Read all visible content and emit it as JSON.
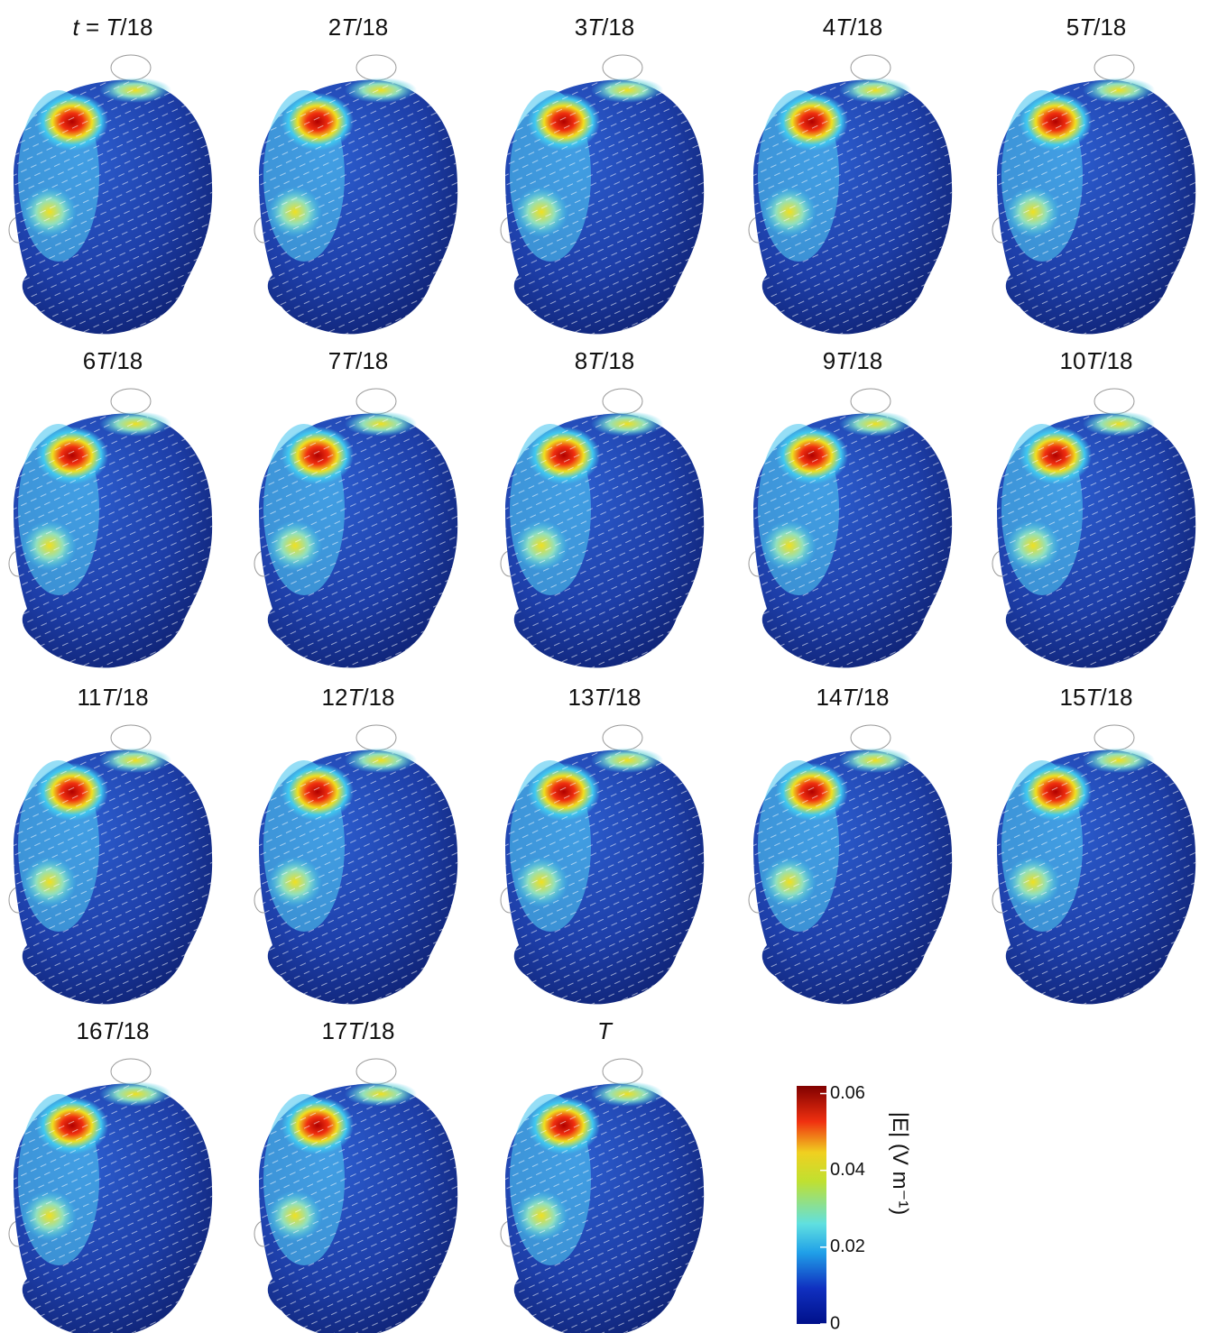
{
  "panels": [
    "t = T/18",
    "2T/18",
    "3T/18",
    "4T/18",
    "5T/18",
    "6T/18",
    "7T/18",
    "8T/18",
    "9T/18",
    "10T/18",
    "11T/18",
    "12T/18",
    "13T/18",
    "14T/18",
    "15T/18",
    "16T/18",
    "17T/18",
    "T"
  ],
  "colorbar": {
    "label": "|E| (V m⁻¹)",
    "lim": [
      0,
      0.062
    ],
    "ticks": [
      0,
      0.02,
      0.04,
      0.06
    ]
  }
}
